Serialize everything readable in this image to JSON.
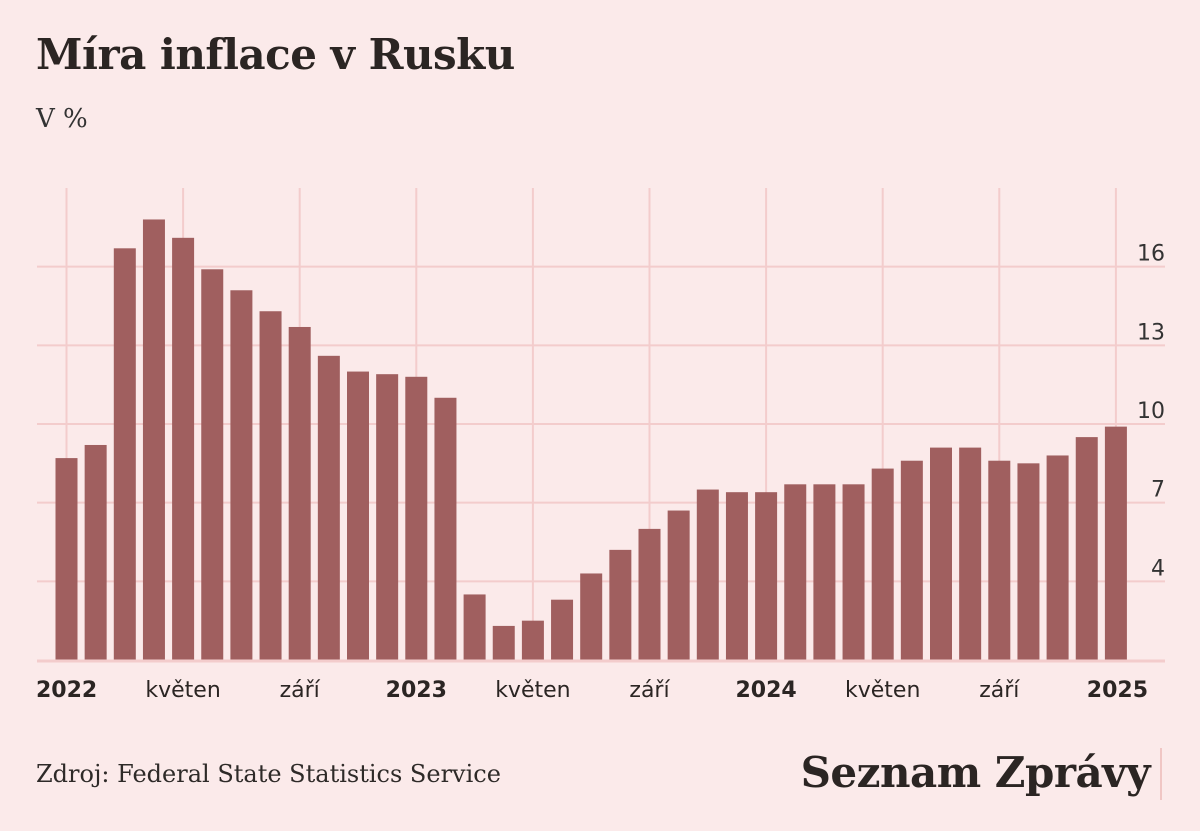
{
  "title": "Míra inflace v Rusku",
  "subtitle": "V %",
  "source": "Zdroj: Federal State Statistics Service",
  "brand": "Seznam Zprávy",
  "colors": {
    "background": "#fbeaea",
    "bar": "#a05f5f",
    "grid": "#f3cccc",
    "text": "#2b2523"
  },
  "chart_data": {
    "type": "bar",
    "ylim": [
      1,
      19
    ],
    "yticks": [
      4,
      7,
      10,
      13,
      16
    ],
    "grid": true,
    "x_tick_labels": [
      {
        "index": 0,
        "label": "2022",
        "bold": true
      },
      {
        "index": 4,
        "label": "květen",
        "bold": false
      },
      {
        "index": 8,
        "label": "září",
        "bold": false
      },
      {
        "index": 12,
        "label": "2023",
        "bold": true
      },
      {
        "index": 16,
        "label": "květen",
        "bold": false
      },
      {
        "index": 20,
        "label": "září",
        "bold": false
      },
      {
        "index": 24,
        "label": "2024",
        "bold": true
      },
      {
        "index": 28,
        "label": "květen",
        "bold": false
      },
      {
        "index": 32,
        "label": "září",
        "bold": false
      },
      {
        "index": 36,
        "label": "2025",
        "bold": true
      }
    ],
    "series": [
      {
        "values": [
          8.7,
          9.2,
          16.7,
          17.8,
          17.1,
          15.9,
          15.1,
          14.3,
          13.7,
          12.6,
          12.0,
          11.9,
          11.8,
          11.0,
          3.5,
          2.3,
          2.5,
          3.3,
          4.3,
          5.2,
          6.0,
          6.7,
          7.5,
          7.4,
          7.4,
          7.7,
          7.7,
          7.7,
          8.3,
          8.6,
          9.1,
          9.1,
          8.6,
          8.5,
          8.8,
          9.5,
          9.9
        ]
      }
    ]
  }
}
